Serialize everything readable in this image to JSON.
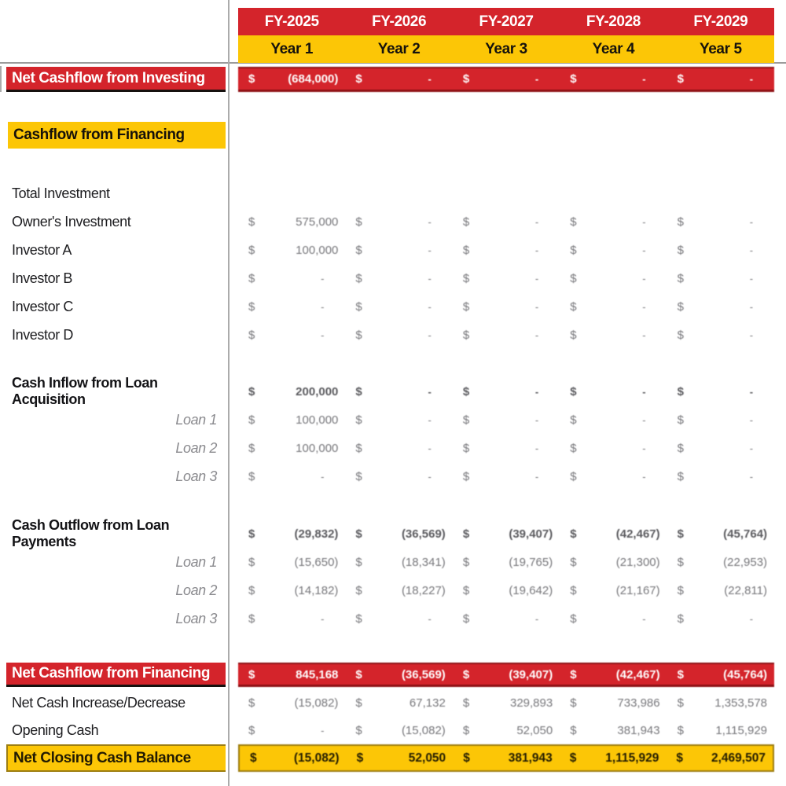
{
  "sheet": {
    "columns": [
      {
        "fy": "FY-2025",
        "year": "Year 1"
      },
      {
        "fy": "FY-2026",
        "year": "Year 2"
      },
      {
        "fy": "FY-2027",
        "year": "Year 3"
      },
      {
        "fy": "FY-2028",
        "year": "Year 4"
      },
      {
        "fy": "FY-2029",
        "year": "Year 5"
      }
    ],
    "currency_symbol": "$",
    "rows": [
      {
        "id": "net-cashflow-investing",
        "label": "Net Cashflow from Investing",
        "style": "banner-red",
        "values": [
          "(684,000)",
          "-",
          "-",
          "-",
          "-"
        ]
      },
      {
        "id": "cashflow-financing-header",
        "label": "Cashflow from Financing",
        "style": "section-yellow",
        "values": null
      },
      {
        "id": "total-investment",
        "label": "Total Investment",
        "style": "normal",
        "values": null
      },
      {
        "id": "owners-investment",
        "label": "Owner's Investment",
        "style": "normal",
        "values": [
          "575,000",
          "-",
          "-",
          "-",
          "-"
        ]
      },
      {
        "id": "investor-a",
        "label": "Investor A",
        "style": "normal",
        "values": [
          "100,000",
          "-",
          "-",
          "-",
          "-"
        ]
      },
      {
        "id": "investor-b",
        "label": "Investor B",
        "style": "normal",
        "values": [
          "-",
          "-",
          "-",
          "-",
          "-"
        ]
      },
      {
        "id": "investor-c",
        "label": "Investor C",
        "style": "normal",
        "values": [
          "-",
          "-",
          "-",
          "-",
          "-"
        ]
      },
      {
        "id": "investor-d",
        "label": "Investor D",
        "style": "normal",
        "values": [
          "-",
          "-",
          "-",
          "-",
          "-"
        ]
      },
      {
        "id": "cash-inflow-loan-acquisition",
        "label": "Cash Inflow from Loan Acquisition",
        "style": "bold",
        "values": [
          "200,000",
          "-",
          "-",
          "-",
          "-"
        ]
      },
      {
        "id": "loan-inflow-1",
        "label": "Loan 1",
        "style": "loan",
        "values": [
          "100,000",
          "-",
          "-",
          "-",
          "-"
        ]
      },
      {
        "id": "loan-inflow-2",
        "label": "Loan 2",
        "style": "loan",
        "values": [
          "100,000",
          "-",
          "-",
          "-",
          "-"
        ]
      },
      {
        "id": "loan-inflow-3",
        "label": "Loan 3",
        "style": "loan",
        "values": [
          "-",
          "-",
          "-",
          "-",
          "-"
        ]
      },
      {
        "id": "cash-outflow-loan-payments",
        "label": "Cash Outflow from Loan Payments",
        "style": "bold",
        "values": [
          "(29,832)",
          "(36,569)",
          "(39,407)",
          "(42,467)",
          "(45,764)"
        ]
      },
      {
        "id": "loan-outflow-1",
        "label": "Loan 1",
        "style": "loan",
        "values": [
          "(15,650)",
          "(18,341)",
          "(19,765)",
          "(21,300)",
          "(22,953)"
        ]
      },
      {
        "id": "loan-outflow-2",
        "label": "Loan 2",
        "style": "loan",
        "values": [
          "(14,182)",
          "(18,227)",
          "(19,642)",
          "(21,167)",
          "(22,811)"
        ]
      },
      {
        "id": "loan-outflow-3",
        "label": "Loan 3",
        "style": "loan",
        "values": [
          "-",
          "-",
          "-",
          "-",
          "-"
        ]
      },
      {
        "id": "net-cashflow-financing",
        "label": "Net Cashflow from Financing",
        "style": "banner-red",
        "values": [
          "845,168",
          "(36,569)",
          "(39,407)",
          "(42,467)",
          "(45,764)"
        ]
      },
      {
        "id": "net-cash-increase-decrease",
        "label": "Net Cash Increase/Decrease",
        "style": "normal",
        "values": [
          "(15,082)",
          "67,132",
          "329,893",
          "733,986",
          "1,353,578"
        ]
      },
      {
        "id": "opening-cash",
        "label": "Opening Cash",
        "style": "normal",
        "values": [
          "-",
          "(15,082)",
          "52,050",
          "381,943",
          "1,115,929"
        ]
      },
      {
        "id": "net-closing-cash-balance",
        "label": "Net Closing Cash Balance",
        "style": "banner-yellow",
        "values": [
          "(15,082)",
          "52,050",
          "381,943",
          "1,115,929",
          "2,469,507"
        ]
      }
    ],
    "colors": {
      "red": "#d4242b",
      "red_dark": "#8e1216",
      "yellow": "#fcc606",
      "yellow_dark": "#9d7e12",
      "grid": "#ababab",
      "grid2": "#9b9b9b",
      "label_text": "#1d1d20",
      "value_text": "#77777b",
      "loan_label": "#8b8b8f"
    }
  }
}
